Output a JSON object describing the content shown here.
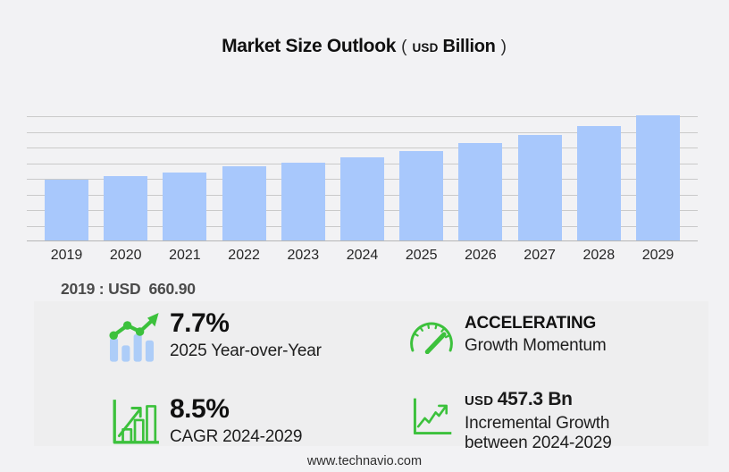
{
  "title": {
    "main": "Market Size Outlook",
    "paren_open": "(",
    "currency": "USD",
    "unit": "Billion",
    "paren_close": ")"
  },
  "chart_data": {
    "type": "bar",
    "title": "Market Size Outlook",
    "unit": "USD Billion",
    "categories": [
      "2019",
      "2020",
      "2021",
      "2022",
      "2023",
      "2024",
      "2025",
      "2026",
      "2027",
      "2028",
      "2029"
    ],
    "values": [
      660.9,
      707,
      743,
      806,
      852,
      908,
      978,
      1061,
      1151,
      1249,
      1365
    ],
    "labeled_point": {
      "year": "2019",
      "value": 660.9
    },
    "ylim": [
      0,
      1400
    ],
    "gridlines": "8 horizontal unlabeled gridlines above baseline",
    "legend": "none",
    "note": "2019 value labeled 660.90; other values estimated from bar heights consistent with 8.5% CAGR 2024-2029 and 7.7% YoY 2025"
  },
  "base_year": {
    "label": "2019 : USD",
    "value": "660.90"
  },
  "stats": {
    "yoy": {
      "value": "7.7%",
      "label": "2025 Year-over-Year",
      "icon": "bar-chart-trend-icon"
    },
    "momentum": {
      "value": "ACCELERATING",
      "label": "Growth Momentum",
      "icon": "speedometer-icon"
    },
    "cagr": {
      "value": "8.5%",
      "label": "CAGR 2024-2029",
      "icon": "growth-bars-icon"
    },
    "incremental": {
      "currency": "USD",
      "value": "457.3 Bn",
      "label": "Incremental Growth between 2024-2029",
      "icon": "trend-axes-icon"
    }
  },
  "footer": {
    "url": "www.technavio.com"
  },
  "colors": {
    "background": "#f2f2f4",
    "panel": "#eeeeef",
    "bar": "#a8c8fc",
    "icon_bar_blue": "#adcdf8",
    "accent_green": "#3cc13c",
    "gridline": "#cacaca"
  }
}
